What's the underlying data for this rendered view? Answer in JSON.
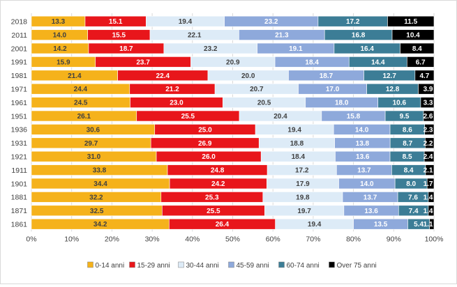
{
  "chart_data": {
    "type": "bar",
    "orientation": "horizontal",
    "stacked": "percent",
    "title": "",
    "xlabel": "",
    "ylabel": "",
    "xlim": [
      0,
      100
    ],
    "x_ticks": [
      "0%",
      "10%",
      "20%",
      "30%",
      "40%",
      "50%",
      "60%",
      "70%",
      "80%",
      "90%",
      "100%"
    ],
    "grid": "vertical",
    "legend_position": "bottom",
    "categories": [
      "2018",
      "2011",
      "2001",
      "1991",
      "1981",
      "1971",
      "1961",
      "1951",
      "1936",
      "1931",
      "1921",
      "1911",
      "1901",
      "1881",
      "1871",
      "1861"
    ],
    "series": [
      {
        "name": "0-14 anni",
        "color": "#F5B21B",
        "label_color": "#404040",
        "values": [
          13.3,
          14.0,
          14.2,
          15.9,
          21.4,
          24.4,
          24.5,
          26.1,
          30.6,
          29.7,
          31.0,
          33.8,
          34.4,
          32.2,
          32.5,
          34.2
        ]
      },
      {
        "name": "15-29 anni",
        "color": "#E8161B",
        "label_color": "#ffffff",
        "values": [
          15.1,
          15.5,
          18.7,
          23.7,
          22.4,
          21.2,
          23.0,
          25.5,
          25.0,
          26.9,
          26.0,
          24.8,
          24.2,
          25.3,
          25.5,
          26.4
        ]
      },
      {
        "name": "30-44 anni",
        "color": "#DDEBF7",
        "label_color": "#404040",
        "values": [
          19.4,
          22.1,
          23.2,
          20.9,
          20.0,
          20.7,
          20.5,
          20.4,
          19.4,
          18.8,
          18.4,
          17.2,
          17.9,
          19.8,
          19.7,
          19.4
        ]
      },
      {
        "name": "45-59 anni",
        "color": "#8EA9DB",
        "label_color": "#ffffff",
        "values": [
          23.2,
          21.3,
          19.1,
          18.4,
          18.7,
          17.0,
          18.0,
          15.8,
          14.0,
          13.8,
          13.6,
          13.7,
          14.0,
          13.7,
          13.6,
          13.5
        ]
      },
      {
        "name": "60-74 anni",
        "color": "#3C7D96",
        "label_color": "#ffffff",
        "values": [
          17.2,
          16.8,
          16.4,
          14.4,
          12.7,
          12.8,
          10.6,
          9.5,
          8.6,
          8.7,
          8.5,
          8.4,
          8.0,
          7.6,
          7.4,
          5.4
        ]
      },
      {
        "name": "Over 75 anni",
        "color": "#000000",
        "label_color": "#ffffff",
        "values": [
          11.5,
          10.4,
          8.4,
          6.7,
          4.7,
          3.9,
          3.3,
          2.6,
          2.3,
          2.2,
          2.4,
          2.1,
          1.7,
          1.4,
          1.4,
          1.1
        ]
      }
    ]
  }
}
